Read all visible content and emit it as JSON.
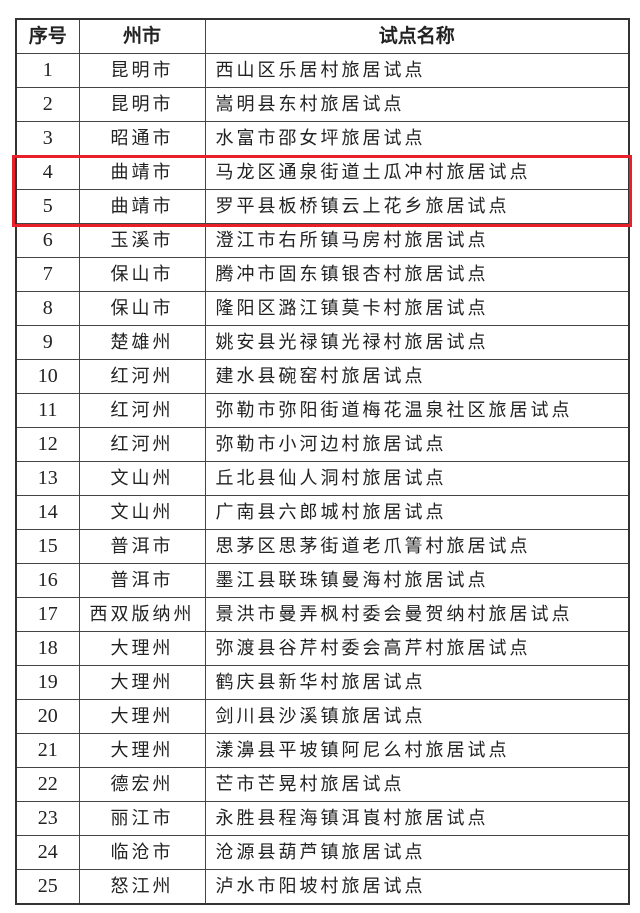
{
  "table": {
    "headers": [
      "序号",
      "州市",
      "试点名称"
    ],
    "rows": [
      [
        "1",
        "昆明市",
        "西山区乐居村旅居试点"
      ],
      [
        "2",
        "昆明市",
        "嵩明县东村旅居试点"
      ],
      [
        "3",
        "昭通市",
        "水富市邵女坪旅居试点"
      ],
      [
        "4",
        "曲靖市",
        "马龙区通泉街道土瓜冲村旅居试点"
      ],
      [
        "5",
        "曲靖市",
        "罗平县板桥镇云上花乡旅居试点"
      ],
      [
        "6",
        "玉溪市",
        "澄江市右所镇马房村旅居试点"
      ],
      [
        "7",
        "保山市",
        "腾冲市固东镇银杏村旅居试点"
      ],
      [
        "8",
        "保山市",
        "隆阳区潞江镇莫卡村旅居试点"
      ],
      [
        "9",
        "楚雄州",
        "姚安县光禄镇光禄村旅居试点"
      ],
      [
        "10",
        "红河州",
        "建水县碗窑村旅居试点"
      ],
      [
        "11",
        "红河州",
        "弥勒市弥阳街道梅花温泉社区旅居试点"
      ],
      [
        "12",
        "红河州",
        "弥勒市小河边村旅居试点"
      ],
      [
        "13",
        "文山州",
        "丘北县仙人洞村旅居试点"
      ],
      [
        "14",
        "文山州",
        "广南县六郎城村旅居试点"
      ],
      [
        "15",
        "普洱市",
        "思茅区思茅街道老爪箐村旅居试点"
      ],
      [
        "16",
        "普洱市",
        "墨江县联珠镇曼海村旅居试点"
      ],
      [
        "17",
        "西双版纳州",
        "景洪市曼弄枫村委会曼贺纳村旅居试点"
      ],
      [
        "18",
        "大理州",
        "弥渡县谷芹村委会高芹村旅居试点"
      ],
      [
        "19",
        "大理州",
        "鹤庆县新华村旅居试点"
      ],
      [
        "20",
        "大理州",
        "剑川县沙溪镇旅居试点"
      ],
      [
        "21",
        "大理州",
        "漾濞县平坡镇阿尼么村旅居试点"
      ],
      [
        "22",
        "德宏州",
        "芒市芒晃村旅居试点"
      ],
      [
        "23",
        "丽江市",
        "永胜县程海镇洱崀村旅居试点"
      ],
      [
        "24",
        "临沧市",
        "沧源县葫芦镇旅居试点"
      ],
      [
        "25",
        "怒江州",
        "泸水市阳坡村旅居试点"
      ]
    ],
    "highlighted_rows": [
      "4",
      "5"
    ],
    "highlight_color": "#e8202a"
  }
}
